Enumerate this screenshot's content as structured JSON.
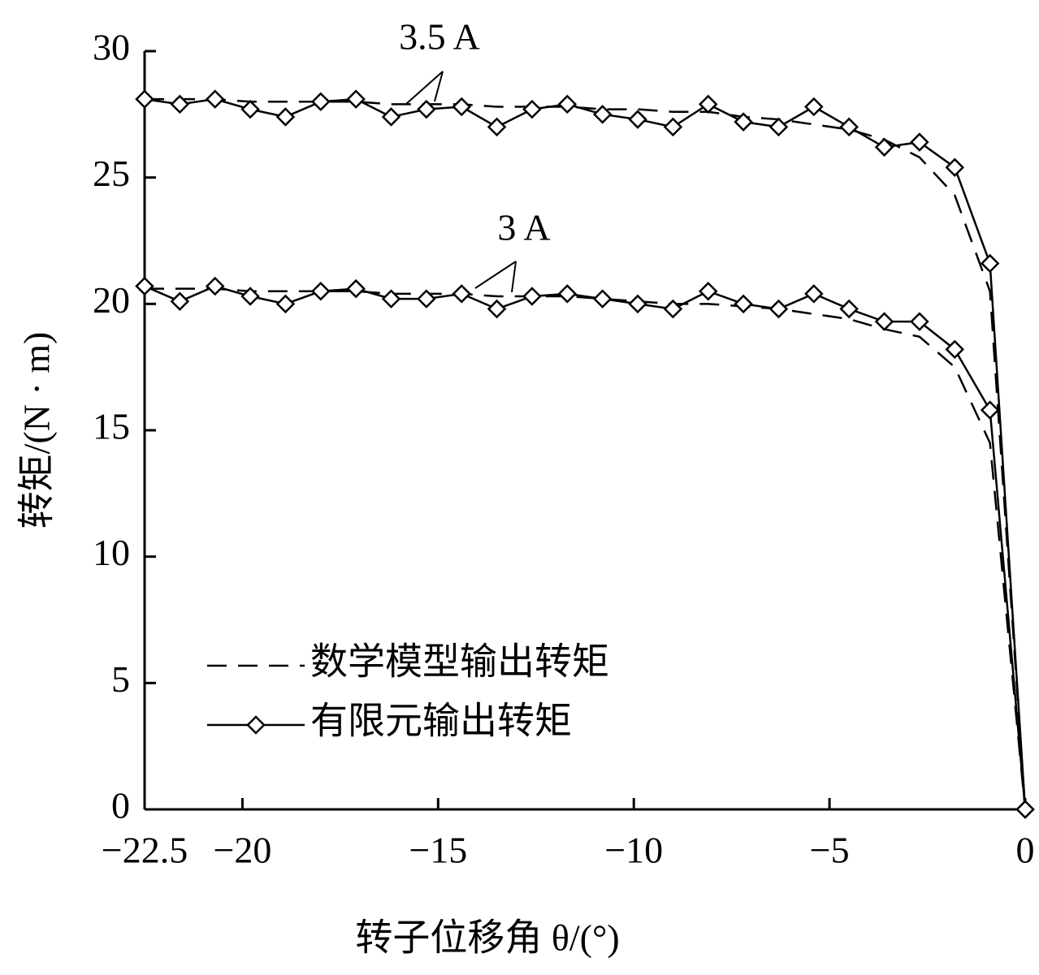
{
  "chart_data": {
    "type": "line",
    "x_label": "转子位移角 θ/(°)",
    "y_label": "转矩/(N · m)",
    "x": [
      -22.5,
      -21.6,
      -20.7,
      -19.8,
      -18.9,
      -18,
      -17.1,
      -16.2,
      -15.3,
      -14.4,
      -13.5,
      -12.6,
      -11.7,
      -10.8,
      -9.9,
      -9,
      -8.1,
      -7.2,
      -6.3,
      -5.4,
      -4.5,
      -3.6,
      -2.7,
      -1.8,
      -0.9,
      0
    ],
    "annotations": [
      "3.5 A",
      "3 A"
    ],
    "series": [
      {
        "name": "数学模型输出转矩",
        "style": "dashed",
        "color": "#000000",
        "values": [
          [
            28.1,
            28.1,
            28.1,
            28.0,
            28.0,
            28.0,
            28.0,
            27.9,
            27.9,
            27.9,
            27.8,
            27.8,
            27.8,
            27.7,
            27.7,
            27.6,
            27.6,
            27.4,
            27.3,
            27.1,
            26.9,
            26.5,
            25.8,
            24.3,
            20.5,
            0
          ],
          [
            20.6,
            20.6,
            20.6,
            20.5,
            20.5,
            20.5,
            20.5,
            20.4,
            20.4,
            20.4,
            20.3,
            20.3,
            20.3,
            20.2,
            20.1,
            20.0,
            20.0,
            19.9,
            19.8,
            19.6,
            19.4,
            19.0,
            18.7,
            17.5,
            14.5,
            0
          ]
        ]
      },
      {
        "name": "有限元输出转矩",
        "style": "solid-diamond",
        "color": "#000000",
        "values": [
          [
            28.1,
            27.9,
            28.1,
            27.7,
            27.4,
            28.0,
            28.1,
            27.4,
            27.7,
            27.8,
            27.0,
            27.7,
            27.9,
            27.5,
            27.3,
            27.0,
            27.9,
            27.2,
            27.0,
            27.8,
            27.0,
            26.2,
            26.4,
            25.4,
            21.6,
            0
          ],
          [
            20.7,
            20.1,
            20.7,
            20.3,
            20.0,
            20.5,
            20.6,
            20.2,
            20.2,
            20.4,
            19.8,
            20.3,
            20.4,
            20.2,
            20.0,
            19.8,
            20.5,
            20.0,
            19.8,
            20.4,
            19.8,
            19.3,
            19.3,
            18.2,
            15.8,
            0
          ]
        ]
      }
    ],
    "xlim": [
      -22.5,
      0
    ],
    "xticks": [
      {
        "value": -22.5,
        "label": "−22.5"
      },
      {
        "value": -20,
        "label": "−20"
      },
      {
        "value": -15,
        "label": "−15"
      },
      {
        "value": -10,
        "label": "−10"
      },
      {
        "value": -5,
        "label": "−5"
      },
      0
    ],
    "ylim": [
      0,
      30
    ],
    "yticks": [
      0,
      5,
      10,
      15,
      20,
      25,
      30
    ],
    "grid": false,
    "legend": "bottom-left"
  }
}
